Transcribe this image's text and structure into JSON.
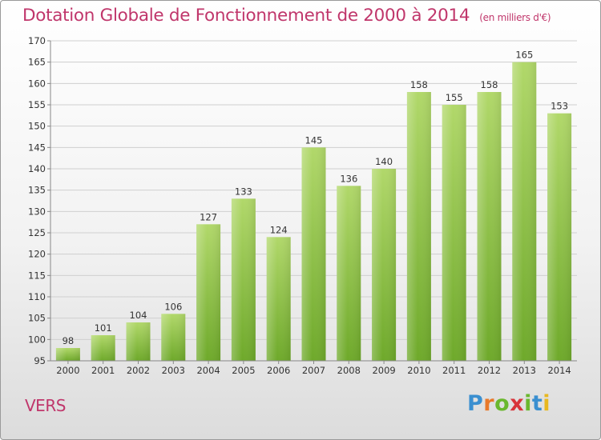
{
  "title": "Dotation Globale de Fonctionnement de 2000 à 2014",
  "subtitle": "(en milliers d'€)",
  "commune": "VERS",
  "logo": {
    "text": "Proxiti",
    "colors": [
      "#3a8fd0",
      "#e8792a",
      "#6ab82e",
      "#d8343a",
      "#6ab82e",
      "#3a8fd0",
      "#e8b820"
    ]
  },
  "colors": {
    "bar_light": "#b1d86a",
    "bar_dark": "#6ea92a",
    "title": "#c0366b",
    "grid": "#cfcfcf",
    "axis": "#888888"
  },
  "chart_data": {
    "type": "bar",
    "title": "Dotation Globale de Fonctionnement de 2000 à 2014",
    "subtitle": "(en milliers d'€)",
    "xlabel": "",
    "ylabel": "",
    "categories": [
      "2000",
      "2001",
      "2002",
      "2003",
      "2004",
      "2005",
      "2006",
      "2007",
      "2008",
      "2009",
      "2010",
      "2011",
      "2012",
      "2013",
      "2014"
    ],
    "values": [
      98,
      101,
      104,
      106,
      127,
      133,
      124,
      145,
      136,
      140,
      158,
      155,
      158,
      165,
      153
    ],
    "ylim": [
      95,
      170
    ],
    "yticks": [
      95,
      100,
      105,
      110,
      115,
      120,
      125,
      130,
      135,
      140,
      145,
      150,
      155,
      160,
      165,
      170
    ],
    "grid": true,
    "legend": "none",
    "data_labels": true
  }
}
